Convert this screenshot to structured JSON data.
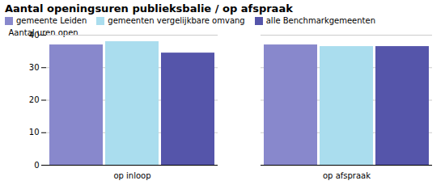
{
  "chart_data": {
    "type": "bar",
    "title": "Aantal openingsuren publieksbalie / op afspraak",
    "ylabel": "Aantal uren open",
    "categories": [
      "op inloop",
      "op afspraak"
    ],
    "series": [
      {
        "name": "gemeente Leiden",
        "color": "#8888cc",
        "values": [
          37,
          37
        ]
      },
      {
        "name": "gemeenten vergelijkbare omvang",
        "color": "#aaddee",
        "values": [
          38,
          36.5
        ]
      },
      {
        "name": "alle Benchmarkgemeenten",
        "color": "#5555aa",
        "values": [
          34.5,
          36.5
        ]
      }
    ],
    "ylim": [
      0,
      40
    ],
    "yticks": [
      0,
      10,
      20,
      30,
      40
    ],
    "grid": true,
    "legend": "upper left"
  }
}
